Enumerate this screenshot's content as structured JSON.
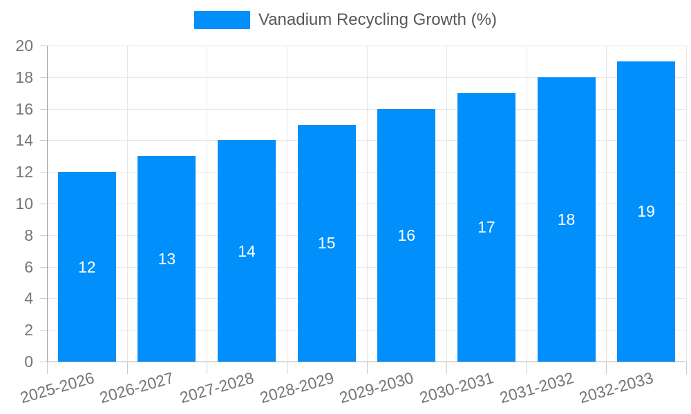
{
  "legend": {
    "label": "Vanadium Recycling Growth (%)"
  },
  "chart_data": {
    "type": "bar",
    "title": "Vanadium Recycling Growth (%)",
    "categories": [
      "2025-2026",
      "2026-2027",
      "2027-2028",
      "2028-2029",
      "2029-2030",
      "2030-2031",
      "2031-2032",
      "2032-2033"
    ],
    "values": [
      12,
      13,
      14,
      15,
      16,
      17,
      18,
      19
    ],
    "yticks": [
      0,
      2,
      4,
      6,
      8,
      10,
      12,
      14,
      16,
      18,
      20
    ],
    "ylim": [
      0,
      20
    ],
    "xlabel": "",
    "ylabel": "",
    "grid": true,
    "legend_position": "top",
    "colors": {
      "bar": "#008ffb",
      "bar_label": "#ffffff",
      "axis": "#a6a6a6",
      "grid": "#e7e7e7",
      "tick": "#cccccc",
      "tick_label": "#757575",
      "legend_text": "#58585a",
      "background": "#ffffff"
    }
  }
}
